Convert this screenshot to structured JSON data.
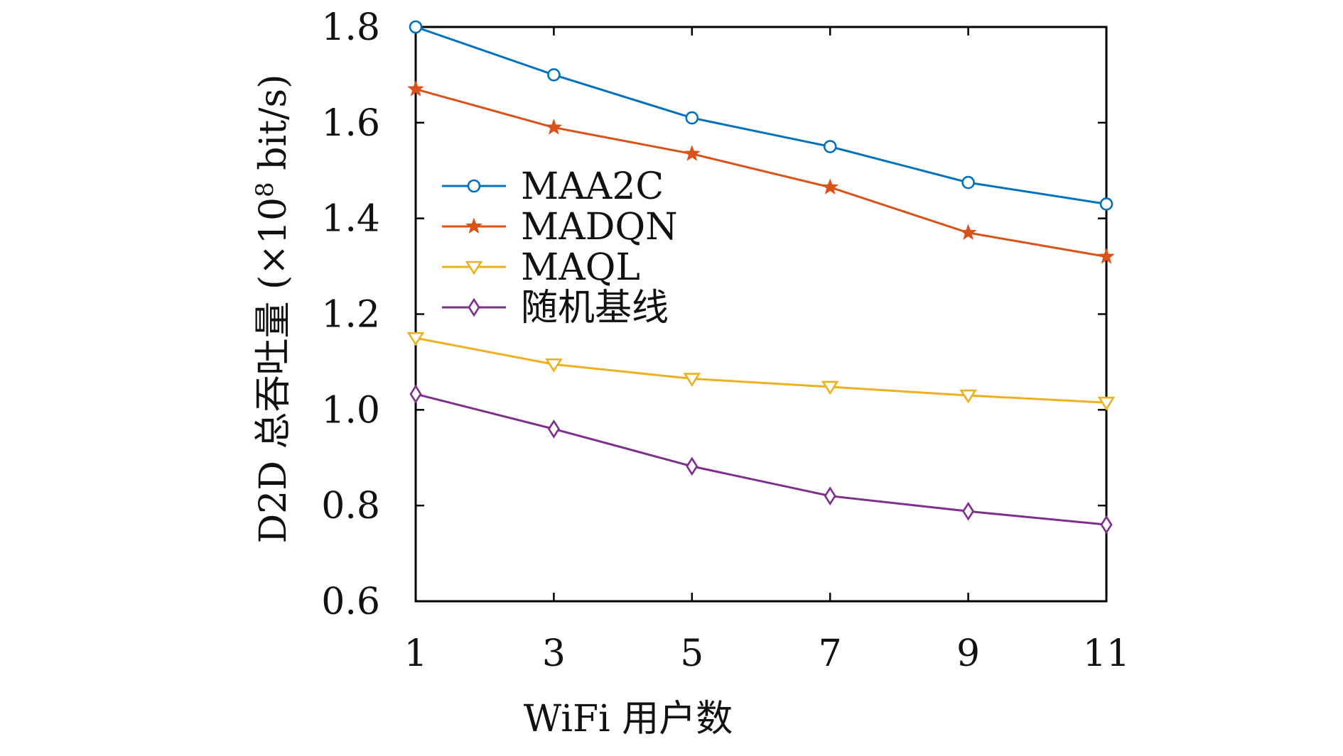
{
  "chart_data": {
    "type": "line",
    "title": "",
    "xlabel": "WiFi 用户数",
    "ylabel_main": "D2D 总吞吐量 (×10",
    "ylabel_exp": "8",
    "ylabel_tail": " bit/s)",
    "x": [
      1,
      3,
      5,
      7,
      9,
      11
    ],
    "xlim": [
      1,
      11
    ],
    "ylim": [
      0.6,
      1.8
    ],
    "xticks": [
      "1",
      "3",
      "5",
      "7",
      "9",
      "11"
    ],
    "yticks": [
      "0.6",
      "0.8",
      "1.0",
      "1.2",
      "1.4",
      "1.6",
      "1.8"
    ],
    "grid": false,
    "legend_position": "center-left",
    "series": [
      {
        "name": "MAA2C",
        "color": "#0072BD",
        "marker": "circle",
        "values": [
          1.8,
          1.7,
          1.61,
          1.55,
          1.475,
          1.43
        ]
      },
      {
        "name": "MADQN",
        "color": "#D95319",
        "marker": "star",
        "values": [
          1.67,
          1.59,
          1.535,
          1.465,
          1.37,
          1.32
        ]
      },
      {
        "name": "MAQL",
        "color": "#EDB120",
        "marker": "triangle-down",
        "values": [
          1.15,
          1.095,
          1.065,
          1.048,
          1.03,
          1.015
        ]
      },
      {
        "name": "随机基线",
        "color": "#7E2F8E",
        "marker": "diamond",
        "values": [
          1.033,
          0.96,
          0.882,
          0.82,
          0.788,
          0.76
        ]
      }
    ]
  }
}
